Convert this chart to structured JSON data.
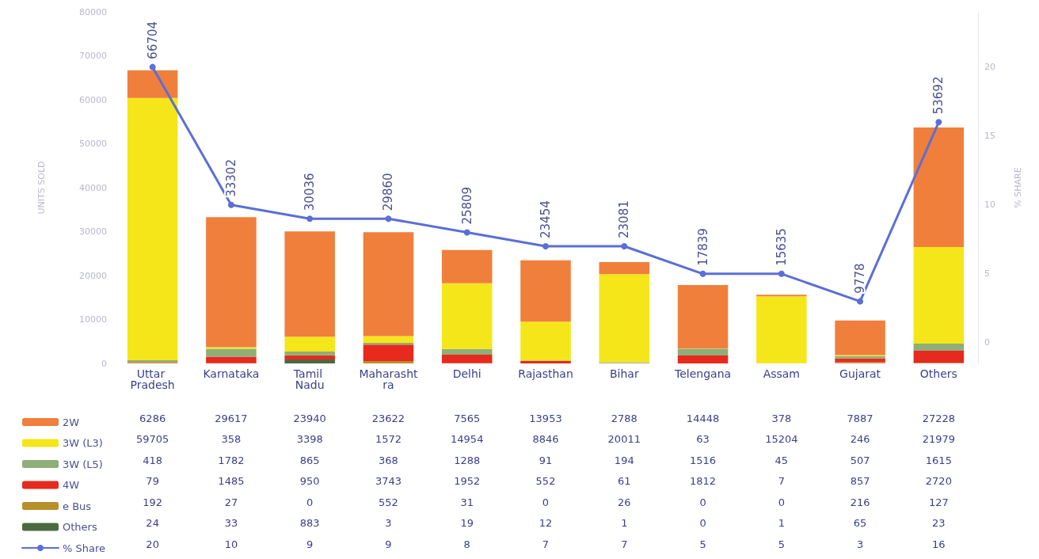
{
  "chart_data": {
    "type": "bar",
    "stacked": true,
    "ylabel": "UNITS SOLD",
    "y2label": "% SHARE",
    "categories": [
      "Uttar Pradesh",
      "Karnataka",
      "Tamil Nadu",
      "Maharashtra",
      "Delhi",
      "Rajasthan",
      "Bihar",
      "Telengana",
      "Assam",
      "Gujarat",
      "Others"
    ],
    "series": [
      {
        "name": "Others",
        "color": "#4a6a40",
        "values": [
          24,
          33,
          883,
          3,
          19,
          12,
          1,
          0,
          1,
          65,
          23
        ]
      },
      {
        "name": "e Bus",
        "color": "#b8902a",
        "values": [
          192,
          27,
          0,
          552,
          31,
          0,
          26,
          0,
          0,
          216,
          127
        ]
      },
      {
        "name": "4W",
        "color": "#e8291e",
        "values": [
          79,
          1485,
          950,
          3743,
          1952,
          552,
          61,
          1812,
          7,
          857,
          2720
        ]
      },
      {
        "name": "3W (L5)",
        "color": "#8fae78",
        "values": [
          418,
          1782,
          865,
          368,
          1288,
          91,
          194,
          1516,
          45,
          507,
          1615
        ]
      },
      {
        "name": "3W (L3)",
        "color": "#f5e61a",
        "values": [
          59705,
          358,
          3398,
          1572,
          14954,
          8846,
          20011,
          63,
          15204,
          246,
          21979
        ]
      },
      {
        "name": "2W",
        "color": "#f07f3c",
        "values": [
          6286,
          29617,
          23940,
          23622,
          7565,
          13953,
          2788,
          14448,
          378,
          7887,
          27228
        ]
      },
      {
        "name": "% Share",
        "type": "line",
        "axis": "y2",
        "color": "#5b6fd6",
        "values": [
          20,
          10,
          9,
          9,
          8,
          7,
          7,
          5,
          5,
          3,
          16
        ]
      }
    ],
    "totals": [
      "66704",
      "33302",
      "30036",
      "29860",
      "25809",
      "23454",
      "23081",
      "17839",
      "15635",
      "9778",
      "53692"
    ],
    "ylim": [
      0,
      80000
    ],
    "yticks": [
      0,
      10000,
      20000,
      30000,
      40000,
      50000,
      60000,
      70000,
      80000
    ],
    "y2lim": [
      -1.5,
      24
    ],
    "y2ticks": [
      0,
      5,
      10,
      15,
      20
    ],
    "data_labels": true,
    "marker": "circle",
    "legend": "bottom left",
    "grid": false
  }
}
